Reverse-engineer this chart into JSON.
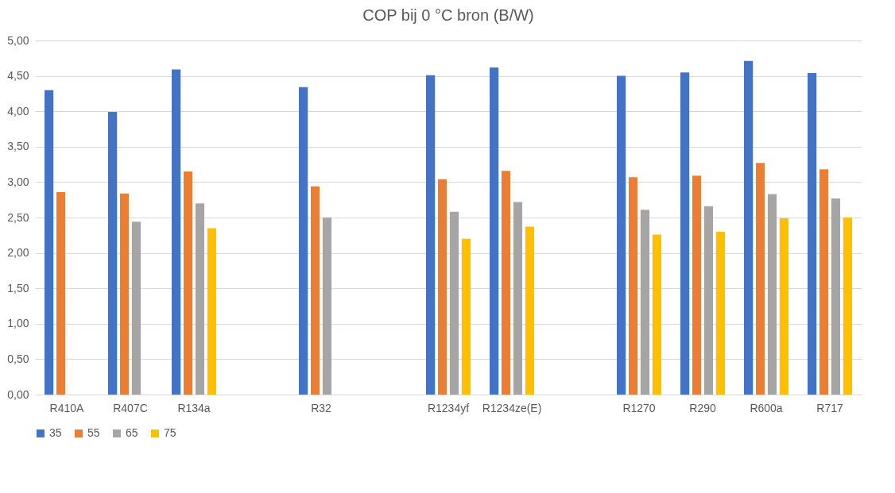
{
  "chart_data": {
    "type": "bar",
    "title": "COP bij 0 °C bron (B/W)",
    "categories": [
      "R410A",
      "R407C",
      "R134a",
      null,
      "R32",
      null,
      "R1234yf",
      "R1234ze(E)",
      null,
      "R1270",
      "R290",
      "R600a",
      "R717"
    ],
    "series": [
      {
        "name": "35",
        "color": "#4472c4",
        "values": [
          4.3,
          3.99,
          4.59,
          null,
          4.34,
          null,
          4.51,
          4.62,
          null,
          4.5,
          4.55,
          4.71,
          4.54
        ]
      },
      {
        "name": "55",
        "color": "#ed7d31",
        "values": [
          2.86,
          2.84,
          3.15,
          null,
          2.94,
          null,
          3.04,
          3.16,
          null,
          3.07,
          3.09,
          3.27,
          3.18
        ]
      },
      {
        "name": "65",
        "color": "#a5a5a5",
        "values": [
          null,
          2.44,
          2.7,
          null,
          2.5,
          null,
          2.58,
          2.72,
          null,
          2.61,
          2.66,
          2.83,
          2.77
        ]
      },
      {
        "name": "75",
        "color": "#ffc000",
        "values": [
          null,
          null,
          2.35,
          null,
          null,
          null,
          2.2,
          2.37,
          null,
          2.26,
          2.3,
          2.49,
          2.5
        ]
      }
    ],
    "ylim": [
      0,
      5
    ],
    "yticks": [
      {
        "value": 0,
        "label": "0,00"
      },
      {
        "value": 0.5,
        "label": "0,50"
      },
      {
        "value": 1,
        "label": "1,00"
      },
      {
        "value": 1.5,
        "label": "1,50"
      },
      {
        "value": 2,
        "label": "2,00"
      },
      {
        "value": 2.5,
        "label": "2,50"
      },
      {
        "value": 3,
        "label": "3,00"
      },
      {
        "value": 3.5,
        "label": "3,50"
      },
      {
        "value": 4,
        "label": "4,00"
      },
      {
        "value": 4.5,
        "label": "4,50"
      },
      {
        "value": 5,
        "label": "5,00"
      }
    ],
    "grid": "y",
    "legend": "bottom"
  }
}
